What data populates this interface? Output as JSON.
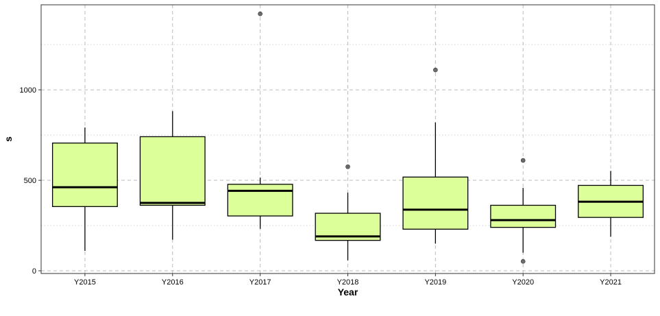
{
  "chart_data": {
    "type": "boxplot",
    "xlabel": "Year",
    "ylabel": "s",
    "categories": [
      "Y2015",
      "Y2016",
      "Y2017",
      "Y2018",
      "Y2019",
      "Y2020",
      "Y2021"
    ],
    "ylim": [
      -15,
      1470
    ],
    "y_ticks": [
      0,
      500,
      1000
    ],
    "y_minor_ticks": [
      250,
      750,
      1250
    ],
    "grid": true,
    "colors": {
      "box_fill": "#ddff99",
      "box_stroke": "#000000",
      "outlier": "#555555",
      "grid_major": "#bbbbbb",
      "grid_minor": "#cccccc"
    },
    "boxes": [
      {
        "category": "Y2015",
        "min": 110,
        "q1": 355,
        "median": 462,
        "q3": 706,
        "max": 792,
        "outliers": []
      },
      {
        "category": "Y2016",
        "min": 172,
        "q1": 362,
        "median": 375,
        "q3": 741,
        "max": 882,
        "outliers": []
      },
      {
        "category": "Y2017",
        "min": 232,
        "q1": 303,
        "median": 442,
        "q3": 478,
        "max": 515,
        "outliers": [
          1420
        ]
      },
      {
        "category": "Y2018",
        "min": 58,
        "q1": 168,
        "median": 190,
        "q3": 318,
        "max": 432,
        "outliers": [
          575
        ]
      },
      {
        "category": "Y2019",
        "min": 150,
        "q1": 230,
        "median": 338,
        "q3": 518,
        "max": 820,
        "outliers": [
          1110
        ]
      },
      {
        "category": "Y2020",
        "min": 100,
        "q1": 240,
        "median": 280,
        "q3": 362,
        "max": 458,
        "outliers": [
          610,
          52
        ]
      },
      {
        "category": "Y2021",
        "min": 188,
        "q1": 295,
        "median": 382,
        "q3": 472,
        "max": 552,
        "outliers": []
      }
    ]
  }
}
